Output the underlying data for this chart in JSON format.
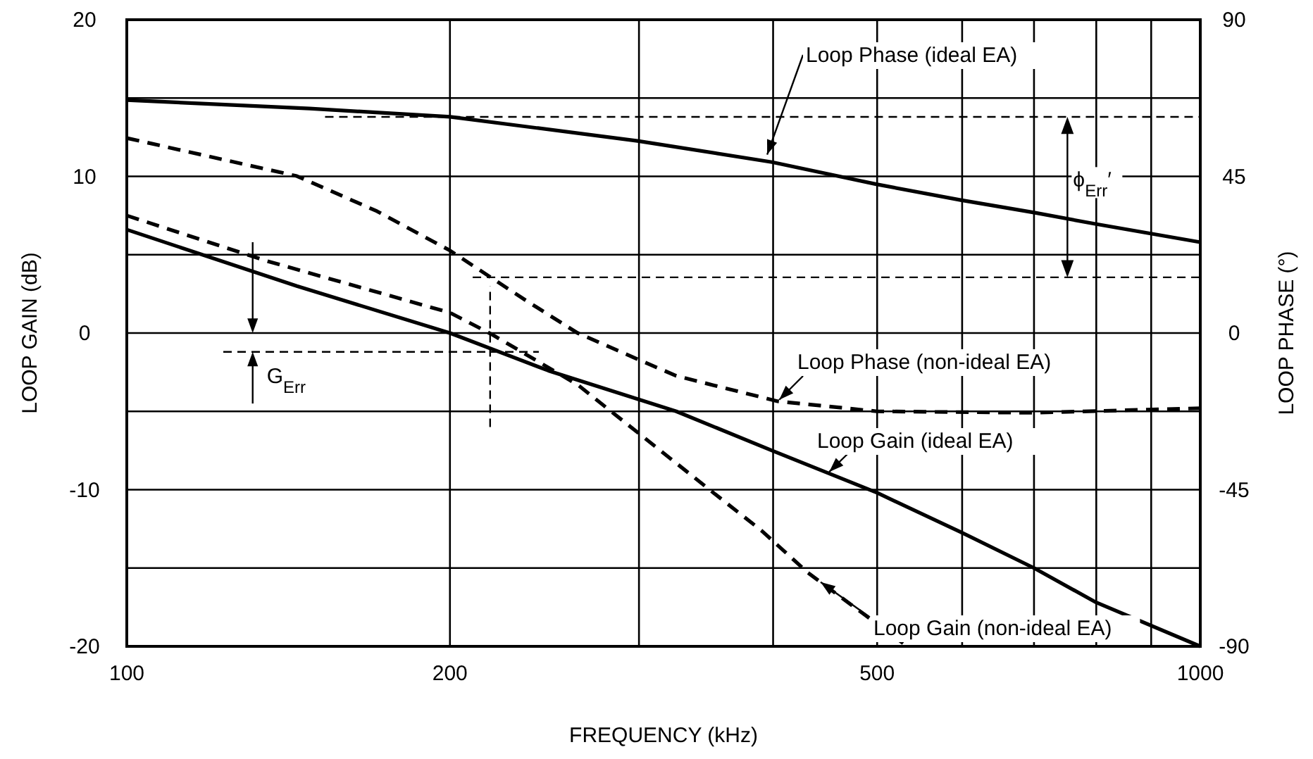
{
  "chart_data": {
    "type": "line",
    "xlabel": "FREQUENCY (kHz)",
    "ylabel": "LOOP GAIN (dB)",
    "y2label": "LOOP PHASE (°)",
    "log": "x",
    "grid": true,
    "legend": false,
    "marker": "none",
    "xlim": [
      100,
      1000
    ],
    "xticks": [
      100,
      200,
      {
        "value": 300,
        "label": null
      },
      {
        "value": 400,
        "label": null
      },
      500,
      {
        "value": 600,
        "label": null
      },
      {
        "value": 700,
        "label": null
      },
      {
        "value": 800,
        "label": null
      },
      {
        "value": 900,
        "label": null
      },
      1000
    ],
    "ylim": [
      -20,
      20
    ],
    "yticks": [
      -20,
      {
        "value": -15,
        "label": null
      },
      -10,
      {
        "value": -5,
        "label": null
      },
      0,
      {
        "value": 5,
        "label": null
      },
      10,
      {
        "value": 15,
        "label": null
      },
      20
    ],
    "y2lim": [
      -90,
      90
    ],
    "y2ticks": [
      -90,
      -45,
      0,
      45,
      90
    ],
    "series": [
      {
        "name": "Loop Phase (ideal EA)",
        "axis": "y2",
        "color": "#000000",
        "line_style": "solid",
        "x": [
          100,
          148,
          200,
          299,
          399,
          500,
          598,
          700,
          800,
          1000
        ],
        "values": [
          66.9,
          64.5,
          62.1,
          55.2,
          49.1,
          42.7,
          38.2,
          34.6,
          31.3,
          26.1
        ]
      },
      {
        "name": "Loop Phase (non-ideal EA)",
        "axis": "y2",
        "color": "#000000",
        "line_style": "dashed",
        "x": [
          100,
          144,
          171,
          200,
          235,
          263,
          299,
          325,
          352,
          404,
          500,
          700,
          1000
        ],
        "values": [
          56,
          45.1,
          35,
          23.7,
          9.5,
          0,
          -7.5,
          -12.3,
          -15,
          -19.6,
          -22.5,
          -22.9,
          -21.6
        ]
      },
      {
        "name": "Loop Gain (ideal EA)",
        "axis": "y",
        "color": "#000000",
        "line_style": "solid",
        "x": [
          100,
          144,
          200,
          247,
          325,
          399,
          500,
          598,
          700,
          800,
          1000
        ],
        "values": [
          6.6,
          3.0,
          0,
          -2.4,
          -5,
          -7.5,
          -10.2,
          -12.7,
          -15,
          -17.2,
          -20
        ]
      },
      {
        "name": "Loop Gain (non-ideal EA)",
        "axis": "y",
        "color": "#000000",
        "line_style": "dashed",
        "x": [
          100,
          135,
          200,
          219,
          263,
          352,
          390,
          431,
          531,
          535
        ],
        "values": [
          7.5,
          4.6,
          1.3,
          -0.1,
          -3.3,
          -10.2,
          -12.6,
          -15.3,
          -19.9,
          -20
        ]
      }
    ],
    "ref_lines": [
      {
        "axis": "y2",
        "value": 62.1,
        "line_style": "dashed"
      },
      {
        "axis": "y2",
        "value": 16,
        "line_style": "dashed"
      },
      {
        "axis": "y",
        "value": -1.2,
        "line_style": "dashed"
      },
      {
        "axis": "x",
        "value": 218,
        "line_style": "dashed"
      }
    ],
    "annotations": [
      "G$_{Err}$",
      "ϕ$_{Err}$′"
    ]
  }
}
